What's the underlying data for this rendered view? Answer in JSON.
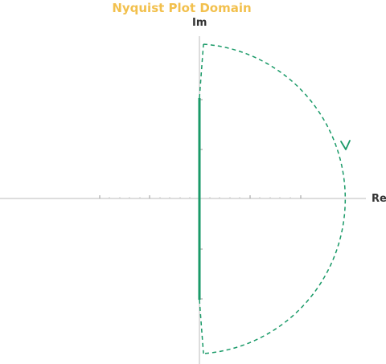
{
  "title": "Nyquist Plot Domain",
  "x_axis_label": "Re",
  "y_axis_label": "Im",
  "colors": {
    "title": "#f2c04d",
    "contour": "#1a9a68",
    "axis": "#bbbbbb",
    "tick": "#999999"
  },
  "contour": {
    "imaginary_axis_segment": "solid",
    "indentation_and_large_semicircle": "dashed",
    "direction_arrow": "clockwise"
  }
}
